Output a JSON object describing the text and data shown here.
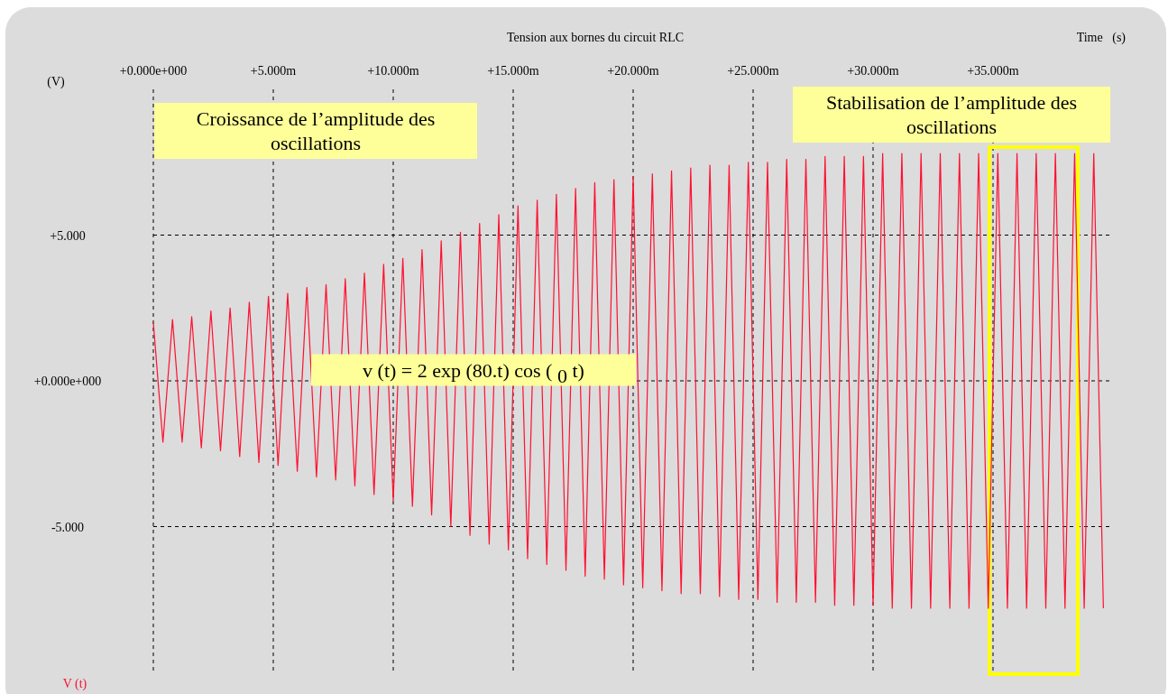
{
  "chart_data": {
    "type": "line",
    "title": "Tension aux bornes du circuit RLC",
    "xlabel": "Time   (s)",
    "ylabel": "(V)",
    "annotations": [
      "Croissance de l’amplitude des oscillations",
      "Stabilisation de l’amplitude des oscillations",
      "v (t) = 2 exp (80.t) cos ( $_{0}$ t)"
    ],
    "xlim": [
      0,
      40
    ],
    "ylim": [
      -10,
      10
    ],
    "xticks": [
      {
        "value": 0,
        "label": "+0.000e+000"
      },
      {
        "value": 5,
        "label": "+5.000m"
      },
      {
        "value": 10,
        "label": "+10.000m"
      },
      {
        "value": 15,
        "label": "+15.000m"
      },
      {
        "value": 20,
        "label": "+20.000m"
      },
      {
        "value": 25,
        "label": "+25.000m"
      },
      {
        "value": 30,
        "label": "+30.000m"
      },
      {
        "value": 35,
        "label": "+35.000m"
      }
    ],
    "yticks": [
      {
        "value": 5,
        "label": "+5.000"
      },
      {
        "value": 0,
        "label": "+0.000e+000"
      },
      {
        "value": -5,
        "label": "-5.000"
      }
    ],
    "grid": true,
    "legend": "bottom left",
    "line_style": "solid",
    "series": [
      {
        "name": "V (t)",
        "color": "#ff1030",
        "x": [
          0,
          0.4,
          0.8,
          1.2,
          1.6,
          2,
          2.4,
          2.8,
          3.2,
          3.6,
          4,
          4.4,
          4.8,
          5.2,
          5.6,
          6,
          6.4,
          6.8,
          7.2,
          7.6,
          8,
          8.4,
          8.8,
          9.2,
          9.6,
          10,
          10.4,
          10.8,
          11.2,
          11.6,
          12,
          12.4,
          12.8,
          13.2,
          13.6,
          14,
          14.4,
          14.8,
          15.2,
          15.6,
          16,
          16.4,
          16.8,
          17.2,
          17.6,
          18,
          18.4,
          18.8,
          19.2,
          19.6,
          20,
          20.4,
          20.8,
          21.2,
          21.6,
          22,
          22.4,
          22.8,
          23.2,
          23.6,
          24,
          24.4,
          24.8,
          25.2,
          25.6,
          26,
          26.4,
          26.8,
          27.2,
          27.6,
          28,
          28.4,
          28.8,
          29.2,
          29.6,
          30,
          30.4,
          30.8,
          31.2,
          31.6,
          32,
          32.4,
          32.8,
          33.2,
          33.6,
          34,
          34.4,
          34.8,
          35.2,
          35.6,
          36,
          36.4,
          36.8,
          37.2,
          37.6,
          38,
          38.4,
          38.8,
          39.2,
          39.6
        ],
        "values": [
          2.0,
          -2.1,
          2.1,
          -2.1,
          2.2,
          -2.3,
          2.4,
          -2.4,
          2.5,
          -2.6,
          2.7,
          -2.8,
          2.9,
          -2.9,
          3.0,
          -3.1,
          3.2,
          -3.3,
          3.3,
          -3.4,
          3.5,
          -3.6,
          3.7,
          -3.9,
          4.0,
          -4.1,
          4.2,
          -4.3,
          4.5,
          -4.6,
          4.8,
          -5.0,
          5.1,
          -5.3,
          5.4,
          -5.6,
          5.7,
          -5.8,
          6.0,
          -6.1,
          6.2,
          -6.3,
          6.4,
          -6.5,
          6.6,
          -6.7,
          6.8,
          -6.8,
          6.9,
          -7.0,
          7.0,
          -7.1,
          7.1,
          -7.2,
          7.2,
          -7.3,
          7.3,
          -7.3,
          7.4,
          -7.4,
          7.4,
          -7.5,
          7.5,
          -7.5,
          7.5,
          -7.6,
          7.6,
          -7.6,
          7.6,
          -7.6,
          7.7,
          -7.7,
          7.7,
          -7.7,
          7.7,
          -7.7,
          7.8,
          -7.8,
          7.8,
          -7.8,
          7.8,
          -7.8,
          7.8,
          -7.8,
          7.8,
          -7.8,
          7.8,
          -7.8,
          7.8,
          -7.8,
          7.8,
          -7.8,
          7.8,
          -7.8,
          7.8,
          -7.8,
          7.8,
          -7.8,
          7.8,
          -7.8
        ]
      }
    ]
  }
}
